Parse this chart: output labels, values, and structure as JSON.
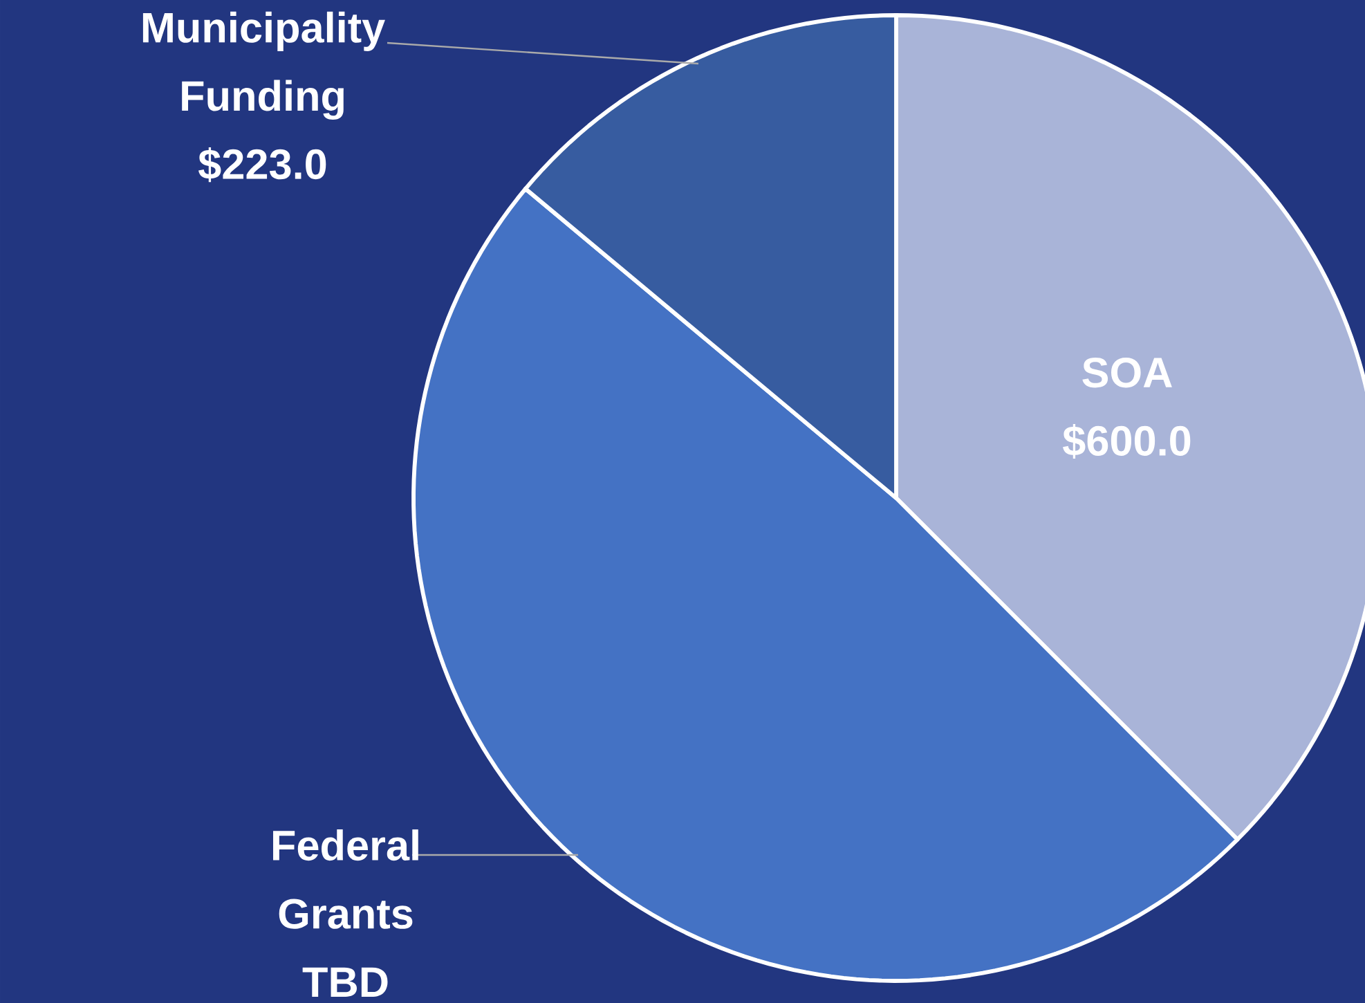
{
  "chart_data": {
    "type": "pie",
    "categories": [
      "SOA",
      "Federal Grants",
      "Municipality Funding"
    ],
    "values": [
      600,
      777,
      223
    ],
    "value_labels": [
      "$600.0",
      "TBD",
      "$223.0"
    ],
    "colors": [
      "#a9b4d8",
      "#4472c4",
      "#375ca0"
    ]
  }
}
